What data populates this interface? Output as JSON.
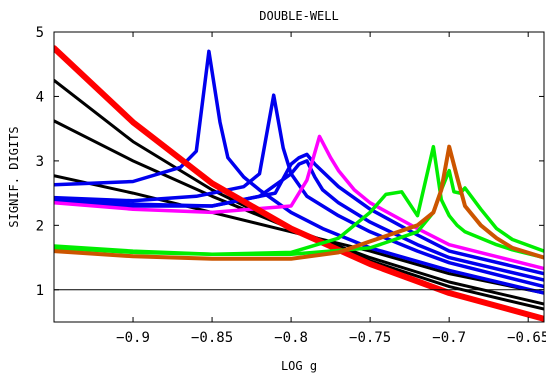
{
  "chart_data": {
    "type": "line",
    "title": "DOUBLE-WELL",
    "xlabel": "LOG g",
    "ylabel": "SIGNIF. DIGITS",
    "xlim": [
      -0.95,
      -0.64
    ],
    "ylim": [
      0.5,
      5
    ],
    "grid": false,
    "legend": "none",
    "x_ticks": [
      {
        "value": -0.9,
        "label": "−0.9"
      },
      {
        "value": -0.85,
        "label": "−0.85"
      },
      {
        "value": -0.8,
        "label": "−0.8"
      },
      {
        "value": -0.75,
        "label": "−0.75"
      },
      {
        "value": -0.7,
        "label": "−0.7"
      },
      {
        "value": -0.65,
        "label": "−0.65"
      }
    ],
    "y_ticks": [
      {
        "value": 1,
        "label": "1"
      },
      {
        "value": 2,
        "label": "2"
      },
      {
        "value": 3,
        "label": "3"
      },
      {
        "value": 4,
        "label": "4"
      },
      {
        "value": 5,
        "label": "5"
      }
    ],
    "reference_lines": [
      {
        "y": 1,
        "color": "#000000"
      }
    ],
    "series": [
      {
        "color": "#000000",
        "width": 3,
        "x": [
          -0.95,
          -0.9,
          -0.85,
          -0.8,
          -0.75,
          -0.7,
          -0.64
        ],
        "y": [
          4.25,
          3.3,
          2.55,
          1.95,
          1.45,
          1.05,
          0.7
        ]
      },
      {
        "color": "#000000",
        "width": 3,
        "x": [
          -0.95,
          -0.9,
          -0.85,
          -0.8,
          -0.75,
          -0.7,
          -0.64
        ],
        "y": [
          3.62,
          3.0,
          2.45,
          1.95,
          1.5,
          1.12,
          0.78
        ]
      },
      {
        "color": "#000000",
        "width": 3,
        "x": [
          -0.95,
          -0.9,
          -0.85,
          -0.8,
          -0.75,
          -0.7,
          -0.64
        ],
        "y": [
          2.77,
          2.5,
          2.2,
          1.9,
          1.6,
          1.25,
          0.95
        ]
      },
      {
        "color": "#0000ee",
        "width": 3.5,
        "x": [
          -0.95,
          -0.9,
          -0.87,
          -0.86,
          -0.852,
          -0.845,
          -0.84,
          -0.83,
          -0.82,
          -0.8,
          -0.78,
          -0.75,
          -0.7,
          -0.64
        ],
        "y": [
          2.63,
          2.68,
          2.9,
          3.15,
          4.7,
          3.6,
          3.05,
          2.75,
          2.55,
          2.2,
          1.95,
          1.65,
          1.3,
          0.95
        ]
      },
      {
        "color": "#0000ee",
        "width": 3.5,
        "x": [
          -0.95,
          -0.9,
          -0.86,
          -0.83,
          -0.82,
          -0.811,
          -0.805,
          -0.8,
          -0.79,
          -0.77,
          -0.75,
          -0.72,
          -0.7,
          -0.64
        ],
        "y": [
          2.43,
          2.38,
          2.45,
          2.6,
          2.8,
          4.02,
          3.2,
          2.8,
          2.45,
          2.15,
          1.9,
          1.6,
          1.42,
          1.05
        ]
      },
      {
        "color": "#0000ee",
        "width": 3.5,
        "x": [
          -0.95,
          -0.9,
          -0.85,
          -0.82,
          -0.8,
          -0.795,
          -0.79,
          -0.785,
          -0.78,
          -0.77,
          -0.75,
          -0.72,
          -0.7,
          -0.64
        ],
        "y": [
          2.42,
          2.33,
          2.3,
          2.45,
          2.8,
          2.95,
          3.0,
          2.75,
          2.55,
          2.35,
          2.05,
          1.7,
          1.5,
          1.15
        ]
      },
      {
        "color": "#0000ee",
        "width": 3.5,
        "x": [
          -0.95,
          -0.9,
          -0.85,
          -0.81,
          -0.8,
          -0.795,
          -0.79,
          -0.785,
          -0.77,
          -0.75,
          -0.72,
          -0.7,
          -0.64
        ],
        "y": [
          2.38,
          2.3,
          2.3,
          2.5,
          2.95,
          3.05,
          3.1,
          2.95,
          2.6,
          2.25,
          1.85,
          1.6,
          1.25
        ]
      },
      {
        "color": "#ff00ff",
        "width": 3.5,
        "x": [
          -0.95,
          -0.9,
          -0.85,
          -0.8,
          -0.79,
          -0.782,
          -0.775,
          -0.77,
          -0.76,
          -0.75,
          -0.72,
          -0.7,
          -0.64
        ],
        "y": [
          2.35,
          2.25,
          2.2,
          2.3,
          2.7,
          3.38,
          3.05,
          2.85,
          2.55,
          2.35,
          1.95,
          1.7,
          1.33
        ]
      },
      {
        "color": "#ff0000",
        "width": 6,
        "x": [
          -0.95,
          -0.9,
          -0.85,
          -0.8,
          -0.75,
          -0.7,
          -0.64
        ],
        "y": [
          4.75,
          3.6,
          2.65,
          1.95,
          1.4,
          0.95,
          0.55
        ]
      },
      {
        "color": "#00ee00",
        "width": 3.5,
        "x": [
          -0.95,
          -0.9,
          -0.85,
          -0.8,
          -0.77,
          -0.75,
          -0.74,
          -0.73,
          -0.72,
          -0.71,
          -0.705,
          -0.7,
          -0.695,
          -0.69,
          -0.68,
          -0.67,
          -0.66,
          -0.64
        ],
        "y": [
          1.68,
          1.6,
          1.55,
          1.58,
          1.8,
          2.2,
          2.48,
          2.52,
          2.15,
          3.22,
          2.4,
          2.15,
          2.0,
          1.9,
          1.8,
          1.7,
          1.62,
          1.5
        ]
      },
      {
        "color": "#00ee00",
        "width": 3.5,
        "x": [
          -0.95,
          -0.9,
          -0.85,
          -0.8,
          -0.75,
          -0.72,
          -0.71,
          -0.705,
          -0.7,
          -0.697,
          -0.693,
          -0.69,
          -0.68,
          -0.67,
          -0.66,
          -0.64
        ],
        "y": [
          1.65,
          1.58,
          1.55,
          1.55,
          1.65,
          1.9,
          2.2,
          2.55,
          2.85,
          2.52,
          2.5,
          2.58,
          2.25,
          1.95,
          1.78,
          1.6
        ]
      },
      {
        "color": "#cc5500",
        "width": 4,
        "x": [
          -0.95,
          -0.9,
          -0.85,
          -0.8,
          -0.77,
          -0.75,
          -0.72,
          -0.71,
          -0.705,
          -0.7,
          -0.695,
          -0.69,
          -0.68,
          -0.67,
          -0.66,
          -0.64
        ],
        "y": [
          1.6,
          1.52,
          1.48,
          1.48,
          1.58,
          1.75,
          2.0,
          2.2,
          2.55,
          3.22,
          2.75,
          2.3,
          2.0,
          1.8,
          1.65,
          1.5
        ]
      }
    ]
  }
}
